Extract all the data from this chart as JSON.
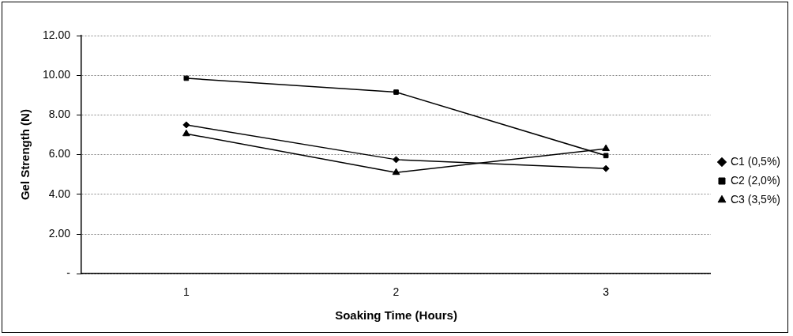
{
  "chart_data": {
    "type": "line",
    "xlabel": "Soaking Time (Hours)",
    "ylabel": "Gel Strength (N)",
    "categories": [
      "1",
      "2",
      "3"
    ],
    "series": [
      {
        "name": "C1 (0,5%)",
        "color": "#000000",
        "marker": "diamond",
        "values": [
          7.5,
          5.75,
          5.3
        ]
      },
      {
        "name": "C2 (2,0%)",
        "color": "#000000",
        "marker": "square",
        "values": [
          9.85,
          9.15,
          5.95
        ]
      },
      {
        "name": "C3 (3,5%)",
        "color": "#000000",
        "marker": "triangle",
        "values": [
          7.05,
          5.1,
          6.3
        ]
      }
    ],
    "ylim": [
      0,
      12
    ],
    "yticks": [
      {
        "value": 0,
        "label": "-"
      },
      {
        "value": 2,
        "label": "2.00"
      },
      {
        "value": 4,
        "label": "4.00"
      },
      {
        "value": 6,
        "label": "6.00"
      },
      {
        "value": 8,
        "label": "8.00"
      },
      {
        "value": 10,
        "label": "10.00"
      },
      {
        "value": 12,
        "label": "12.00"
      }
    ],
    "grid": "y",
    "legend": "right",
    "line_style": "solid"
  }
}
